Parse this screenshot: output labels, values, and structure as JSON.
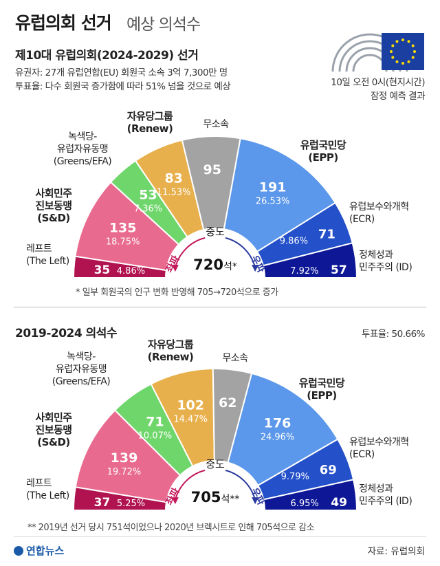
{
  "header": {
    "title_main": "유럽의회 선거",
    "title_sub": "예상 의석수"
  },
  "section1": {
    "title": "제10대 유럽의회(2024-2029) 선거",
    "info1": "유권자: 27개 유럽연합(EU) 회원국 소속 3억 7,300만 명",
    "info2": "투표율: 다수 회원국 증가함에 따라 51% 넘을 것으로 예상",
    "time_note1": "10일 오전 0시(현지시간)",
    "time_note2": "잠정 예측 결과",
    "left_arrow": "좌파",
    "right_arrow": "우파",
    "center_label": "중도",
    "total_num": "720",
    "total_unit": "석*",
    "note": "* 일부 회원국의 인구 변화 반영해 705→720석으로 증가"
  },
  "section2": {
    "title": "2019-2024 의석수",
    "turnout": "투표율: 50.66%",
    "left_arrow": "좌파",
    "right_arrow": "우파",
    "center_label": "중도",
    "total_num": "705",
    "total_unit": "석**",
    "note": "** 2019년 선거 당시 751석이었으나 2020년 브렉시트로 인해 705석으로 감소"
  },
  "parties": {
    "left": {
      "name1": "레프트",
      "name2": "(The Left)"
    },
    "sd": {
      "name1": "사회민주",
      "name2": "진보동맹",
      "name3": "(S&D)"
    },
    "greens": {
      "name1": "녹색당-",
      "name2": "유럽자유동맹",
      "name3": "(Greens/EFA)"
    },
    "renew": {
      "name1": "자유당그룹",
      "name2": "(Renew)"
    },
    "ni": {
      "name1": "무소속"
    },
    "epp": {
      "name1": "유럽국민당",
      "name2": "(EPP)"
    },
    "ecr": {
      "name1": "유럽보수와개혁",
      "name2": "(ECR)"
    },
    "id": {
      "name1": "정체성과",
      "name2": "민주주의 (ID)"
    }
  },
  "footer": {
    "logo": "연합뉴스",
    "source": "자료: 유럽의회"
  },
  "colors": {
    "left": "#b0134f",
    "sd": "#e96a8f",
    "greens": "#6fd66b",
    "renew": "#e8b04c",
    "ni": "#a3a3a3",
    "epp": "#5b97ea",
    "ecr": "#2450c9",
    "id": "#0e1896",
    "eu_flag": "#1b3fa0"
  },
  "chart_data": [
    {
      "type": "pie",
      "title": "제10대 유럽의회(2024-2029) 선거",
      "categories": [
        "The Left",
        "S&D",
        "Greens/EFA",
        "Renew",
        "무소속",
        "EPP",
        "ECR",
        "ID"
      ],
      "values": [
        35,
        135,
        53,
        83,
        95,
        191,
        71,
        57
      ],
      "value_labels": [
        "35",
        "135",
        "53",
        "83",
        "95",
        "191",
        "71",
        "57"
      ],
      "percent_labels": [
        "4.86%",
        "18.75%",
        "7.36%",
        "11.53%",
        "",
        "26.53%",
        "9.86%",
        "7.92%"
      ],
      "total": 720
    },
    {
      "type": "pie",
      "title": "2019-2024 의석수",
      "categories": [
        "The Left",
        "S&D",
        "Greens/EFA",
        "Renew",
        "무소속",
        "EPP",
        "ECR",
        "ID"
      ],
      "values": [
        37,
        139,
        71,
        102,
        62,
        176,
        69,
        49
      ],
      "value_labels": [
        "37",
        "139",
        "71",
        "102",
        "62",
        "176",
        "69",
        "49"
      ],
      "percent_labels": [
        "5.25%",
        "19.72%",
        "10.07%",
        "14.47%",
        "",
        "24.96%",
        "9.79%",
        "6.95%"
      ],
      "total": 705
    }
  ]
}
